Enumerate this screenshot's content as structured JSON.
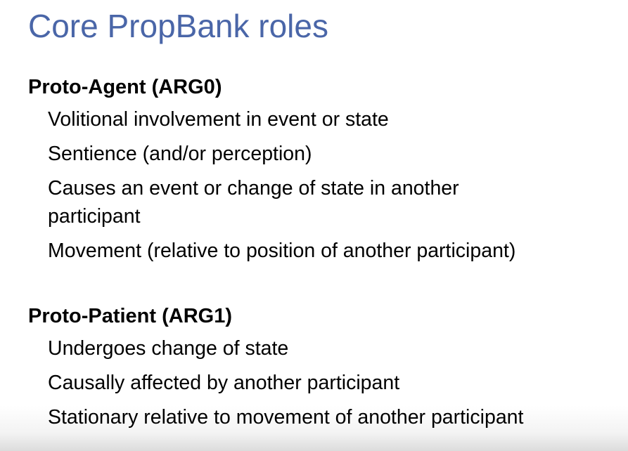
{
  "slide": {
    "title": "Core PropBank roles",
    "sections": [
      {
        "heading": "Proto-Agent (ARG0)",
        "items": [
          "Volitional involvement in event or state",
          "Sentience (and/or perception)",
          "Causes an event or change of state in another participant",
          "Movement (relative to position of another participant)"
        ]
      },
      {
        "heading": "Proto-Patient (ARG1)",
        "items": [
          "Undergoes change of state",
          "Causally affected by another participant",
          "Stationary relative to movement of another participant"
        ]
      }
    ],
    "colors": {
      "title": "#4a66a8",
      "text": "#000000",
      "background": "#ffffff"
    }
  }
}
